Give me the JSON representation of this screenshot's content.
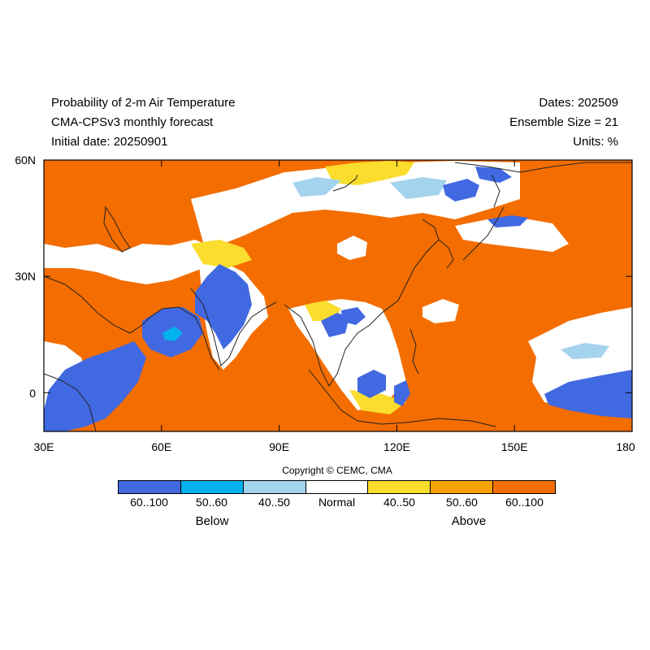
{
  "header": {
    "title": "Probability of 2-m Air Temperature",
    "subtitle": "CMA-CPSv3 monthly forecast",
    "initial": "Initial date: 20250901",
    "dates": "Dates: 202509",
    "ensemble": "Ensemble Size = 21",
    "units": "Units: %"
  },
  "axes": {
    "x_ticks": [
      "30E",
      "60E",
      "90E",
      "120E",
      "150E",
      "180"
    ],
    "y_ticks": [
      "60N",
      "30N",
      "0"
    ],
    "lon_range": [
      30,
      180
    ],
    "lat_range": [
      -10,
      60
    ]
  },
  "copyright": "Copyright © CEMC, CMA",
  "legend": {
    "bins": [
      {
        "label": "60..100",
        "color": "#4169e1"
      },
      {
        "label": "50..60",
        "color": "#00b2ee"
      },
      {
        "label": "40..50",
        "color": "#a4d3ee"
      },
      {
        "label": "Normal",
        "color": "#ffffff"
      },
      {
        "label": "40..50",
        "color": "#fadd2d"
      },
      {
        "label": "50..60",
        "color": "#f5a200"
      },
      {
        "label": "60..100",
        "color": "#f36d00"
      }
    ],
    "below_label": "Below",
    "above_label": "Above"
  },
  "map_colors": {
    "above_strong": "#f36d00",
    "above_mid": "#f5a200",
    "above_weak": "#fadd2d",
    "normal": "#ffffff",
    "below_weak": "#a4d3ee",
    "below_mid": "#00b2ee",
    "below_strong": "#4169e1",
    "coast": "#222222"
  }
}
